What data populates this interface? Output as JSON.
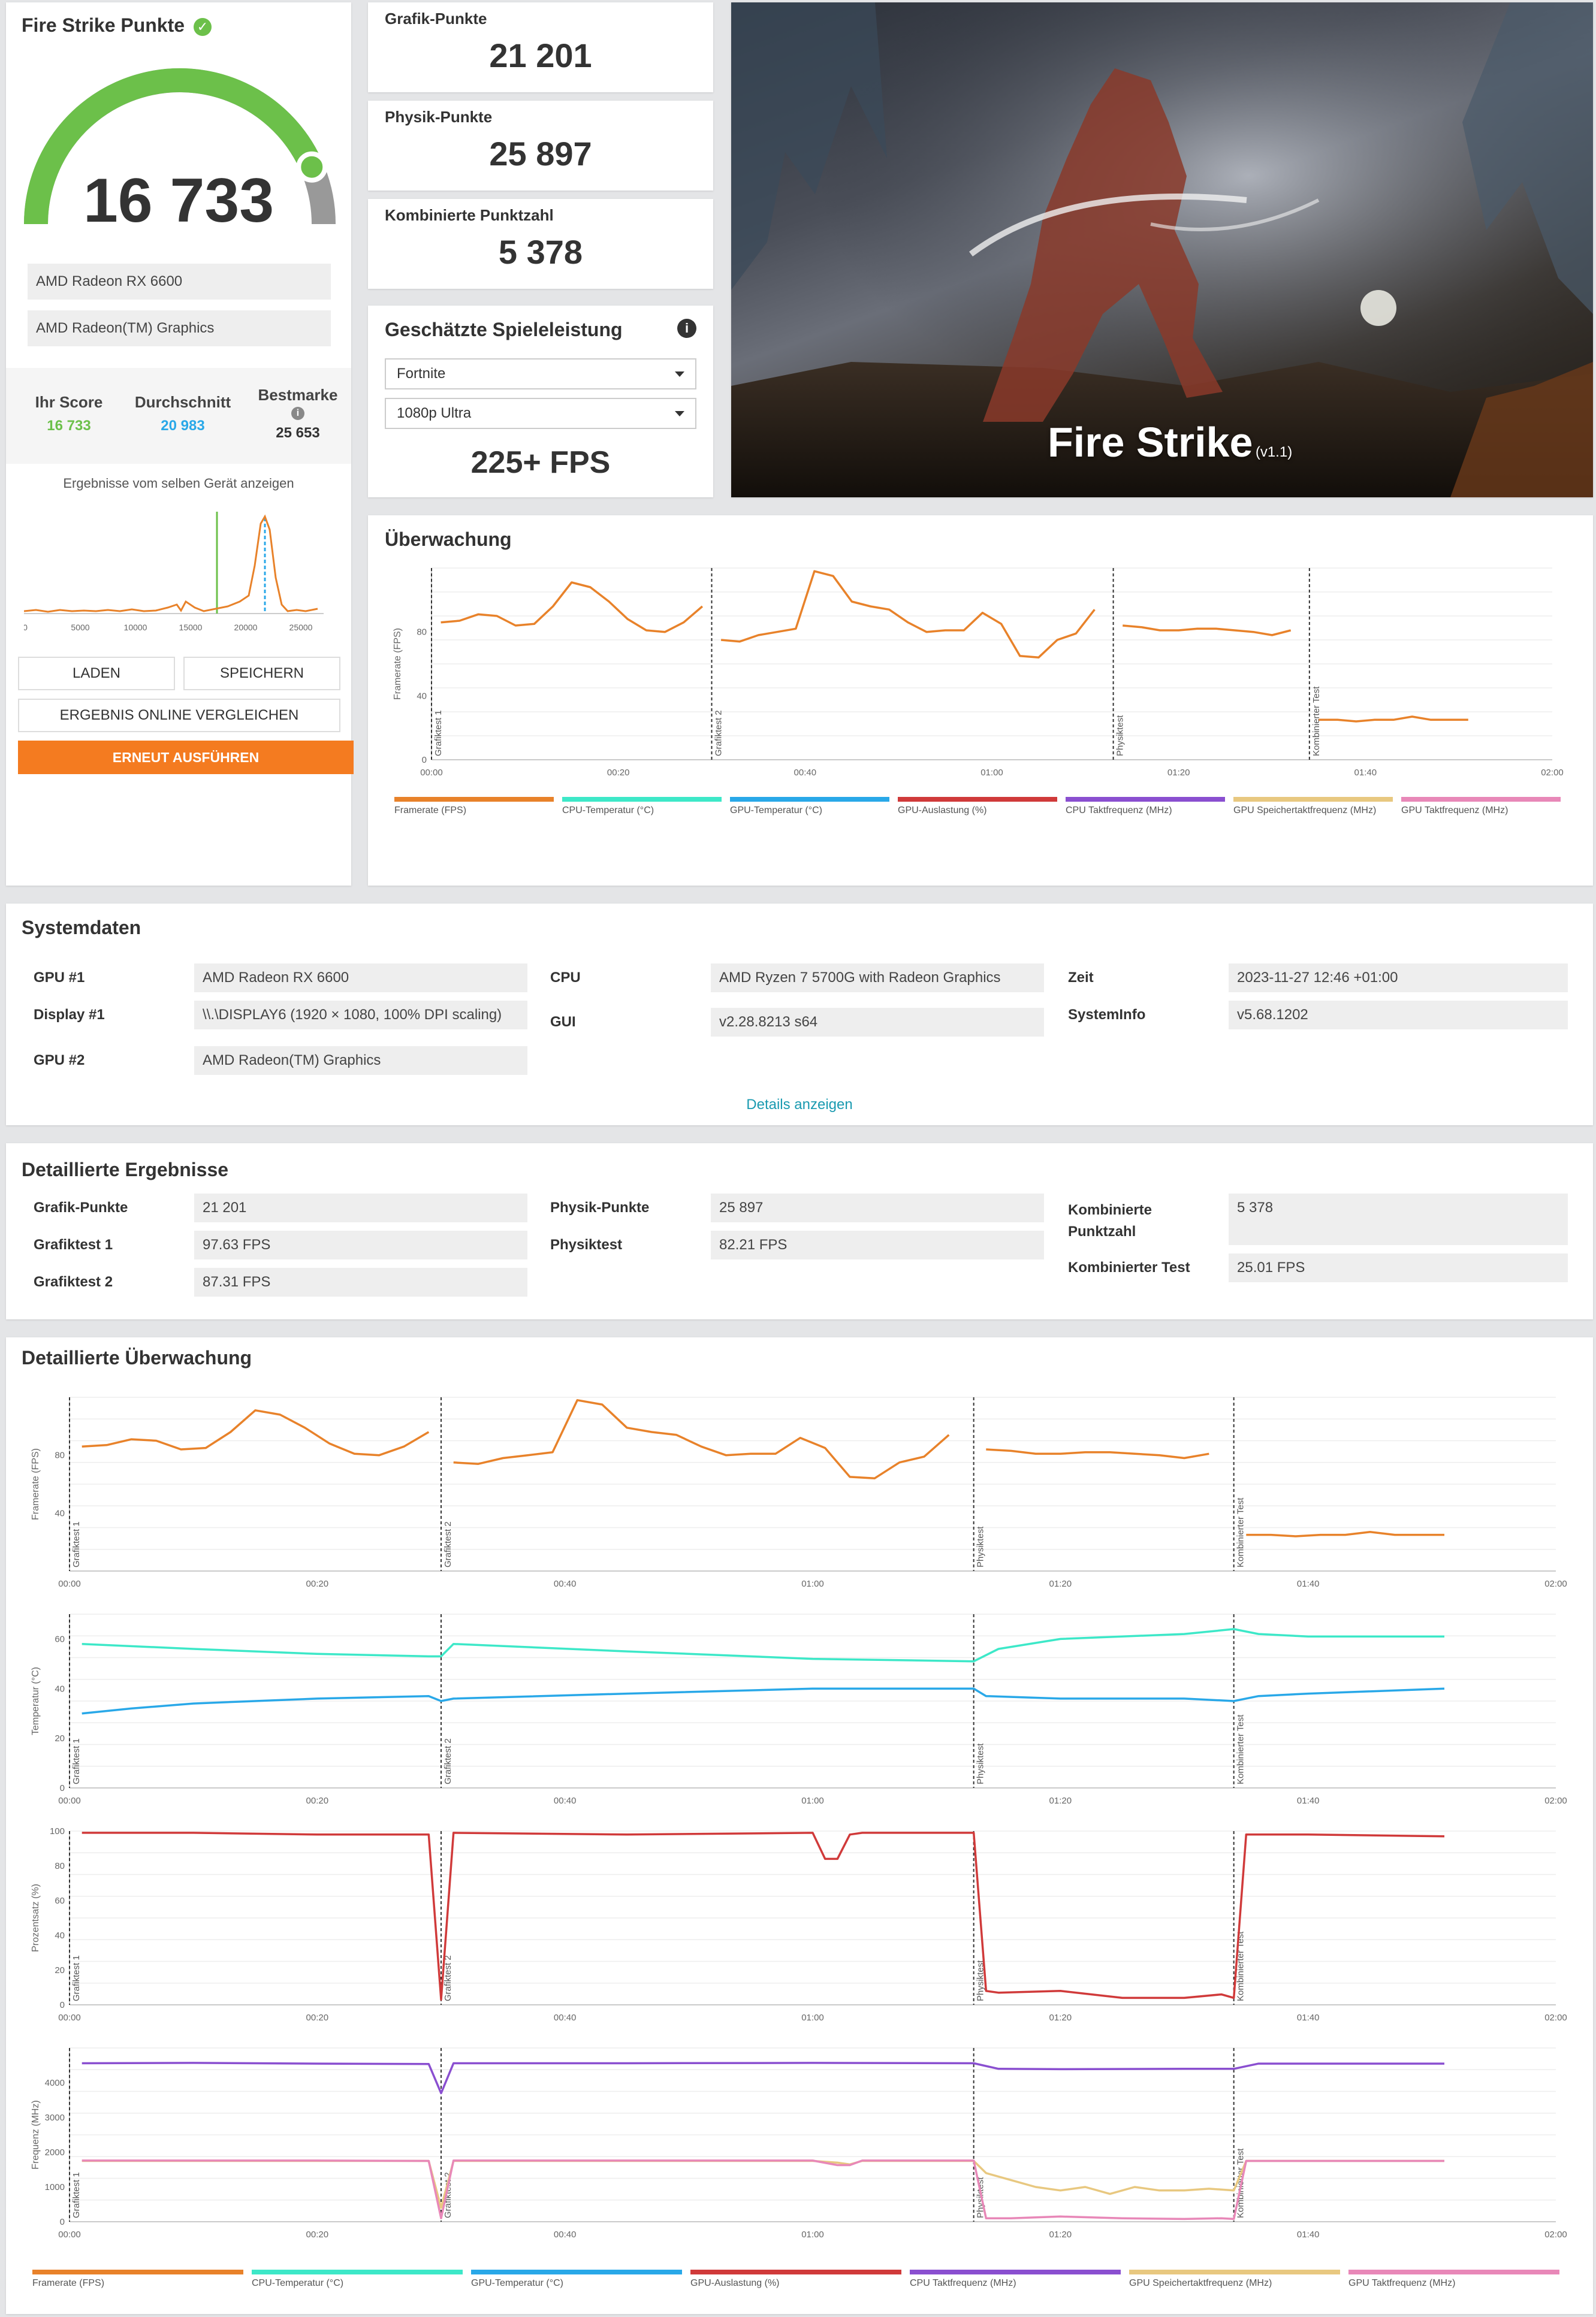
{
  "score": {
    "title": "Fire Strike Punkte",
    "value": "16 733",
    "gauge_fraction": 0.87,
    "devices": [
      "AMD Radeon RX 6600",
      "AMD Radeon(TM) Graphics"
    ],
    "your_label": "Ihr Score",
    "your_value": "16 733",
    "avg_label": "Durchschnitt",
    "avg_value": "20 983",
    "best_label": "Bestmarke",
    "best_value": "25 653",
    "same_device": "Ergebnisse vom selben Gerät anzeigen",
    "dist_ticks": [
      "0",
      "5000",
      "10000",
      "15000",
      "20000",
      "25000"
    ],
    "load": "LADEN",
    "save": "SPEICHERN",
    "compare": "ERGEBNIS ONLINE VERGLEICHEN",
    "rerun": "ERNEUT AUSFÜHREN"
  },
  "subscores": [
    {
      "label": "Grafik-Punkte",
      "value": "21 201"
    },
    {
      "label": "Physik-Punkte",
      "value": "25 897"
    },
    {
      "label": "Kombinierte Punktzahl",
      "value": "5 378"
    }
  ],
  "game_perf": {
    "title": "Geschätzte Spieleleistung",
    "game": "Fortnite",
    "preset": "1080p Ultra",
    "fps": "225+ FPS"
  },
  "banner": {
    "title": "Fire Strike",
    "version": "(v1.1)"
  },
  "monitor": {
    "title": "Überwachung",
    "ylabel": "Framerate (FPS)",
    "yticks": [
      "0",
      "40",
      "80"
    ],
    "xticks": [
      "00:00",
      "00:20",
      "00:40",
      "01:00",
      "01:20",
      "01:40",
      "02:00"
    ],
    "sections": [
      "Grafiktest 1",
      "Grafiktest 2",
      "Physiktest",
      "Kombinierter Test"
    ]
  },
  "legend": [
    {
      "label": "Framerate (FPS)",
      "color": "#e8822a"
    },
    {
      "label": "CPU-Temperatur (°C)",
      "color": "#3de8c8"
    },
    {
      "label": "GPU-Temperatur (°C)",
      "color": "#29a8e8"
    },
    {
      "label": "GPU-Auslastung (%)",
      "color": "#d03a3a"
    },
    {
      "label": "CPU Taktfrequenz (MHz)",
      "color": "#8a4fd0"
    },
    {
      "label": "GPU Speichertaktfrequenz (MHz)",
      "color": "#e8c880"
    },
    {
      "label": "GPU Taktfrequenz (MHz)",
      "color": "#e888b8"
    }
  ],
  "system": {
    "title": "Systemdaten",
    "rows": [
      {
        "label": "GPU #1",
        "value": "AMD Radeon RX 6600"
      },
      {
        "label": "Display #1",
        "value": "\\\\.\\DISPLAY6 (1920 × 1080, 100% DPI scaling)"
      },
      {
        "label": "GPU #2",
        "value": "AMD Radeon(TM) Graphics"
      },
      {
        "label": "CPU",
        "value": "AMD Ryzen 7 5700G with Radeon Graphics"
      },
      {
        "label": "GUI",
        "value": "v2.28.8213 s64"
      },
      {
        "label": "Zeit",
        "value": "2023-11-27 12:46 +01:00"
      },
      {
        "label": "SystemInfo",
        "value": "v5.68.1202"
      }
    ],
    "details_link": "Details anzeigen"
  },
  "detailed": {
    "title": "Detaillierte Ergebnisse",
    "rows": [
      {
        "label": "Grafik-Punkte",
        "value": "21 201"
      },
      {
        "label": "Grafiktest 1",
        "value": "97.63 FPS"
      },
      {
        "label": "Grafiktest 2",
        "value": "87.31 FPS"
      },
      {
        "label": "Physik-Punkte",
        "value": "25 897"
      },
      {
        "label": "Physiktest",
        "value": "82.21 FPS"
      },
      {
        "label": "Kombinierte Punktzahl",
        "value": "5 378"
      },
      {
        "label": "Kombinierter Test",
        "value": "25.01 FPS"
      }
    ]
  },
  "detailed_monitor": {
    "title": "Detaillierte Überwachung",
    "charts": [
      {
        "ylabel": "Framerate (FPS)",
        "yticks": [
          "40",
          "80"
        ]
      },
      {
        "ylabel": "Temperatur (°C)",
        "yticks": [
          "0",
          "20",
          "40",
          "60"
        ]
      },
      {
        "ylabel": "Prozentsatz (%)",
        "yticks": [
          "0",
          "20",
          "40",
          "60",
          "80",
          "100"
        ]
      },
      {
        "ylabel": "Frequenz (MHz)",
        "yticks": [
          "0",
          "1000",
          "2000",
          "3000",
          "4000"
        ]
      }
    ]
  },
  "chart_data": [
    {
      "type": "line",
      "title": "Überwachung",
      "ylabel": "Framerate (FPS)",
      "xlim": [
        0,
        120
      ],
      "ylim": [
        0,
        120
      ],
      "x_unit": "seconds",
      "markers": [
        {
          "label": "Grafiktest 1",
          "x": 0
        },
        {
          "label": "Grafiktest 2",
          "x": 30
        },
        {
          "label": "Physiktest",
          "x": 73
        },
        {
          "label": "Kombinierter Test",
          "x": 94
        }
      ],
      "series": [
        {
          "name": "Framerate (FPS)",
          "color": "#e8822a",
          "x": [
            1,
            3,
            5,
            7,
            9,
            11,
            13,
            15,
            17,
            19,
            21,
            23,
            25,
            27,
            29
          ],
          "y": [
            86,
            87,
            91,
            90,
            84,
            85,
            96,
            111,
            108,
            99,
            88,
            81,
            80,
            86,
            96
          ]
        },
        {
          "name": "Framerate (FPS)",
          "color": "#e8822a",
          "x": [
            31,
            33,
            35,
            37,
            39,
            41,
            43,
            45,
            47,
            49,
            51,
            53,
            55,
            57,
            59,
            61,
            63,
            65,
            67,
            69,
            71
          ],
          "y": [
            75,
            74,
            78,
            80,
            82,
            118,
            115,
            99,
            96,
            94,
            86,
            80,
            81,
            81,
            92,
            85,
            65,
            64,
            75,
            79,
            94
          ]
        },
        {
          "name": "Framerate (FPS)",
          "color": "#e8822a",
          "x": [
            74,
            76,
            78,
            80,
            82,
            84,
            86,
            88,
            90,
            92
          ],
          "y": [
            84,
            83,
            81,
            81,
            82,
            82,
            81,
            80,
            78,
            81
          ]
        },
        {
          "name": "Framerate (FPS)",
          "color": "#e8822a",
          "x": [
            95,
            97,
            99,
            101,
            103,
            105,
            107,
            109,
            111
          ],
          "y": [
            25,
            25,
            24,
            25,
            25,
            27,
            25,
            25,
            25
          ]
        }
      ]
    },
    {
      "type": "line",
      "title": "Temperatur",
      "ylabel": "Temperatur (°C)",
      "xlim": [
        0,
        120
      ],
      "ylim": [
        0,
        70
      ],
      "series": [
        {
          "name": "CPU-Temperatur (°C)",
          "color": "#3de8c8",
          "x": [
            1,
            10,
            20,
            29,
            30,
            31,
            45,
            60,
            73,
            75,
            80,
            90,
            94,
            96,
            100,
            111
          ],
          "y": [
            58,
            56,
            54,
            53,
            53,
            58,
            55,
            52,
            51,
            56,
            60,
            62,
            64,
            62,
            61,
            61
          ]
        },
        {
          "name": "GPU-Temperatur (°C)",
          "color": "#29a8e8",
          "x": [
            1,
            5,
            10,
            20,
            29,
            30,
            31,
            45,
            60,
            73,
            74,
            80,
            90,
            94,
            96,
            100,
            111
          ],
          "y": [
            30,
            32,
            34,
            36,
            37,
            35,
            36,
            38,
            40,
            40,
            37,
            36,
            36,
            35,
            37,
            38,
            40
          ]
        }
      ]
    },
    {
      "type": "line",
      "title": "GPU-Auslastung",
      "ylabel": "Prozentsatz (%)",
      "xlim": [
        0,
        120
      ],
      "ylim": [
        0,
        100
      ],
      "series": [
        {
          "name": "GPU-Auslastung (%)",
          "color": "#d03a3a",
          "x": [
            1,
            10,
            20,
            29,
            30,
            31,
            45,
            60,
            61,
            62,
            63,
            64,
            73,
            74,
            75,
            80,
            85,
            90,
            93,
            94,
            95,
            100,
            111
          ],
          "y": [
            99,
            99,
            98,
            98,
            3,
            99,
            98,
            99,
            84,
            84,
            98,
            99,
            99,
            8,
            7,
            8,
            4,
            4,
            6,
            4,
            98,
            98,
            97
          ]
        }
      ]
    },
    {
      "type": "line",
      "title": "Frequenz",
      "ylabel": "Frequenz (MHz)",
      "xlim": [
        0,
        120
      ],
      "ylim": [
        0,
        5000
      ],
      "series": [
        {
          "name": "CPU Taktfrequenz (MHz)",
          "color": "#8a4fd0",
          "x": [
            1,
            10,
            20,
            29,
            30,
            31,
            45,
            60,
            73,
            75,
            80,
            90,
            94,
            96,
            111
          ],
          "y": [
            4560,
            4570,
            4550,
            4540,
            3700,
            4560,
            4560,
            4570,
            4560,
            4400,
            4390,
            4400,
            4400,
            4550,
            4550
          ]
        },
        {
          "name": "GPU Speichertaktfrequenz (MHz)",
          "color": "#e8c880",
          "x": [
            1,
            10,
            20,
            29,
            30,
            31,
            45,
            60,
            62,
            63,
            64,
            73,
            74,
            76,
            78,
            80,
            82,
            84,
            86,
            88,
            90,
            92,
            94,
            95,
            111
          ],
          "y": [
            1750,
            1750,
            1750,
            1750,
            400,
            1750,
            1750,
            1750,
            1700,
            1650,
            1750,
            1750,
            1400,
            1200,
            1000,
            900,
            1000,
            800,
            1000,
            900,
            900,
            950,
            900,
            1750,
            1750
          ]
        },
        {
          "name": "GPU Taktfrequenz (MHz)",
          "color": "#e888b8",
          "x": [
            1,
            10,
            20,
            29,
            30,
            31,
            45,
            60,
            62,
            63,
            64,
            73,
            74,
            76,
            80,
            85,
            90,
            93,
            94,
            95,
            111
          ],
          "y": [
            1760,
            1760,
            1760,
            1750,
            100,
            1760,
            1760,
            1760,
            1630,
            1630,
            1760,
            1760,
            100,
            100,
            150,
            100,
            80,
            100,
            80,
            1750,
            1750
          ]
        }
      ]
    }
  ]
}
